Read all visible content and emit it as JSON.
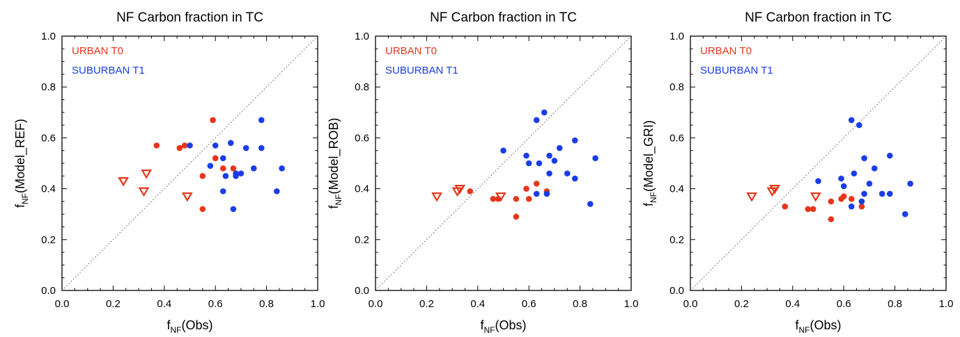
{
  "colors": {
    "urban": "#e8361a",
    "suburban": "#1a3de8",
    "axis": "#000000",
    "diagonal": "#555555"
  },
  "chart_data": [
    {
      "type": "scatter",
      "title": "NF Carbon fraction in TC",
      "xlabel": {
        "base": "f",
        "sub": "NF",
        "rest": "(Obs)"
      },
      "ylabel": {
        "base": "f",
        "sub": "NF",
        "rest": "(Model_REF)"
      },
      "xlim": [
        0,
        1
      ],
      "ylim": [
        0,
        1
      ],
      "xticks": [
        "0.0",
        "0.2",
        "0.4",
        "0.6",
        "0.8",
        "1.0"
      ],
      "yticks": [
        "0.0",
        "0.2",
        "0.4",
        "0.6",
        "0.8",
        "1.0"
      ],
      "legend": [
        {
          "label": "URBAN T0",
          "color": "#e8361a"
        },
        {
          "label": "SUBURBAN T1",
          "color": "#1a3de8"
        }
      ],
      "reference_line": "1:1",
      "series": [
        {
          "name": "URBAN T0",
          "marker": "triangle-down-open",
          "color": "#e8361a",
          "points": [
            [
              0.24,
              0.43
            ],
            [
              0.32,
              0.39
            ],
            [
              0.33,
              0.46
            ],
            [
              0.49,
              0.37
            ]
          ]
        },
        {
          "name": "URBAN T0",
          "marker": "dot",
          "color": "#e8361a",
          "points": [
            [
              0.37,
              0.57
            ],
            [
              0.46,
              0.56
            ],
            [
              0.48,
              0.57
            ],
            [
              0.55,
              0.45
            ],
            [
              0.55,
              0.32
            ],
            [
              0.59,
              0.67
            ],
            [
              0.6,
              0.52
            ],
            [
              0.63,
              0.48
            ],
            [
              0.67,
              0.48
            ]
          ]
        },
        {
          "name": "SUBURBAN T1",
          "marker": "dot",
          "color": "#1a3de8",
          "points": [
            [
              0.5,
              0.57
            ],
            [
              0.58,
              0.49
            ],
            [
              0.6,
              0.57
            ],
            [
              0.63,
              0.52
            ],
            [
              0.63,
              0.39
            ],
            [
              0.64,
              0.45
            ],
            [
              0.66,
              0.58
            ],
            [
              0.67,
              0.32
            ],
            [
              0.68,
              0.46
            ],
            [
              0.68,
              0.45
            ],
            [
              0.7,
              0.46
            ],
            [
              0.72,
              0.56
            ],
            [
              0.75,
              0.48
            ],
            [
              0.78,
              0.56
            ],
            [
              0.78,
              0.67
            ],
            [
              0.84,
              0.39
            ],
            [
              0.86,
              0.48
            ]
          ]
        }
      ]
    },
    {
      "type": "scatter",
      "title": "NF Carbon fraction in TC",
      "xlabel": {
        "base": "f",
        "sub": "NF",
        "rest": "(Obs)"
      },
      "ylabel": {
        "base": "f",
        "sub": "NF",
        "rest": "(Model_ROB)"
      },
      "xlim": [
        0,
        1
      ],
      "ylim": [
        0,
        1
      ],
      "xticks": [
        "0.0",
        "0.2",
        "0.4",
        "0.6",
        "0.8",
        "1.0"
      ],
      "yticks": [
        "0.0",
        "0.2",
        "0.4",
        "0.6",
        "0.8",
        "1.0"
      ],
      "legend": [
        {
          "label": "URBAN T0",
          "color": "#e8361a"
        },
        {
          "label": "SUBURBAN T1",
          "color": "#1a3de8"
        }
      ],
      "reference_line": "1:1",
      "series": [
        {
          "name": "URBAN T0",
          "marker": "triangle-down-open",
          "color": "#e8361a",
          "points": [
            [
              0.24,
              0.37
            ],
            [
              0.32,
              0.39
            ],
            [
              0.33,
              0.4
            ],
            [
              0.49,
              0.37
            ]
          ]
        },
        {
          "name": "URBAN T0",
          "marker": "dot",
          "color": "#e8361a",
          "points": [
            [
              0.37,
              0.39
            ],
            [
              0.46,
              0.36
            ],
            [
              0.48,
              0.36
            ],
            [
              0.55,
              0.36
            ],
            [
              0.55,
              0.29
            ],
            [
              0.59,
              0.4
            ],
            [
              0.6,
              0.36
            ],
            [
              0.63,
              0.42
            ],
            [
              0.67,
              0.39
            ]
          ]
        },
        {
          "name": "SUBURBAN T1",
          "marker": "dot",
          "color": "#1a3de8",
          "points": [
            [
              0.5,
              0.55
            ],
            [
              0.59,
              0.53
            ],
            [
              0.6,
              0.5
            ],
            [
              0.63,
              0.67
            ],
            [
              0.63,
              0.38
            ],
            [
              0.64,
              0.5
            ],
            [
              0.66,
              0.7
            ],
            [
              0.67,
              0.38
            ],
            [
              0.68,
              0.53
            ],
            [
              0.68,
              0.46
            ],
            [
              0.7,
              0.51
            ],
            [
              0.72,
              0.56
            ],
            [
              0.75,
              0.46
            ],
            [
              0.78,
              0.59
            ],
            [
              0.78,
              0.44
            ],
            [
              0.84,
              0.34
            ],
            [
              0.86,
              0.52
            ]
          ]
        }
      ]
    },
    {
      "type": "scatter",
      "title": "NF Carbon fraction in TC",
      "xlabel": {
        "base": "f",
        "sub": "NF",
        "rest": "(Obs)"
      },
      "ylabel": {
        "base": "f",
        "sub": "NF",
        "rest": "(Model_GRI)"
      },
      "xlim": [
        0,
        1
      ],
      "ylim": [
        0,
        1
      ],
      "xticks": [
        "0.0",
        "0.2",
        "0.4",
        "0.6",
        "0.8",
        "1.0"
      ],
      "yticks": [
        "0.0",
        "0.2",
        "0.4",
        "0.6",
        "0.8",
        "1.0"
      ],
      "legend": [
        {
          "label": "URBAN T0",
          "color": "#e8361a"
        },
        {
          "label": "SUBURBAN T1",
          "color": "#1a3de8"
        }
      ],
      "reference_line": "1:1",
      "series": [
        {
          "name": "URBAN T0",
          "marker": "triangle-down-open",
          "color": "#e8361a",
          "points": [
            [
              0.24,
              0.37
            ],
            [
              0.32,
              0.39
            ],
            [
              0.33,
              0.4
            ],
            [
              0.49,
              0.37
            ]
          ]
        },
        {
          "name": "URBAN T0",
          "marker": "dot",
          "color": "#e8361a",
          "points": [
            [
              0.37,
              0.33
            ],
            [
              0.46,
              0.32
            ],
            [
              0.48,
              0.32
            ],
            [
              0.55,
              0.35
            ],
            [
              0.55,
              0.28
            ],
            [
              0.59,
              0.36
            ],
            [
              0.6,
              0.37
            ],
            [
              0.63,
              0.36
            ],
            [
              0.67,
              0.33
            ]
          ]
        },
        {
          "name": "SUBURBAN T1",
          "marker": "dot",
          "color": "#1a3de8",
          "points": [
            [
              0.5,
              0.43
            ],
            [
              0.59,
              0.44
            ],
            [
              0.6,
              0.41
            ],
            [
              0.63,
              0.67
            ],
            [
              0.63,
              0.33
            ],
            [
              0.64,
              0.46
            ],
            [
              0.66,
              0.65
            ],
            [
              0.67,
              0.35
            ],
            [
              0.68,
              0.52
            ],
            [
              0.68,
              0.38
            ],
            [
              0.7,
              0.42
            ],
            [
              0.72,
              0.48
            ],
            [
              0.75,
              0.38
            ],
            [
              0.78,
              0.53
            ],
            [
              0.78,
              0.38
            ],
            [
              0.84,
              0.3
            ],
            [
              0.86,
              0.42
            ]
          ]
        }
      ]
    }
  ]
}
